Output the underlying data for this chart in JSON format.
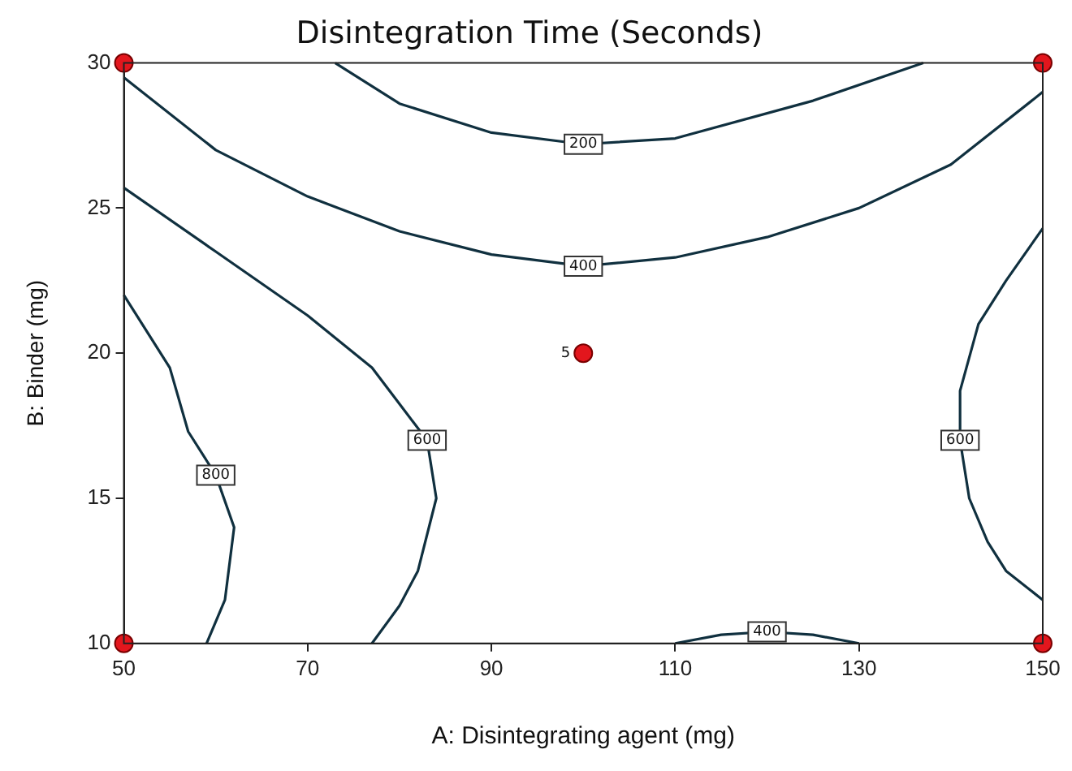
{
  "chart_data": {
    "type": "line",
    "title": "Disintegration Time (Seconds)",
    "xlabel": "A: Disintegrating agent (mg)",
    "ylabel": "B: Binder (mg)",
    "xlim": [
      50,
      150
    ],
    "xticks": [
      50,
      70,
      90,
      110,
      130,
      150
    ],
    "ylim": [
      10,
      30
    ],
    "yticks": [
      10,
      15,
      20,
      25,
      30
    ],
    "grid": false,
    "legend": false,
    "marker": "none",
    "line_style": "solid",
    "series": [
      {
        "name": "200",
        "color": "#10303f",
        "x": [
          73,
          80,
          90,
          100,
          110,
          125,
          137
        ],
        "values": [
          30,
          28.6,
          27.6,
          27.2,
          27.4,
          28.7,
          30
        ]
      },
      {
        "name": "400",
        "color": "#10303f",
        "x": [
          50,
          60,
          70,
          80,
          90,
          100,
          110,
          120,
          130,
          140,
          150
        ],
        "values": [
          29.5,
          27,
          25.4,
          24.2,
          23.4,
          23,
          23.3,
          24,
          25,
          26.5,
          29
        ]
      },
      {
        "name": "600",
        "color": "#10303f",
        "x": [
          50,
          60,
          70,
          77,
          83,
          84,
          82,
          80,
          77
        ],
        "values": [
          25.7,
          23.5,
          21.3,
          19.5,
          17,
          15,
          12.5,
          11.3,
          10
        ]
      },
      {
        "name": "800",
        "color": "#10303f",
        "x": [
          50,
          55,
          57,
          60,
          62,
          61,
          59
        ],
        "values": [
          22,
          19.5,
          17.3,
          15.8,
          14,
          11.5,
          10
        ]
      },
      {
        "name": "600",
        "color": "#10303f",
        "x": [
          150,
          146,
          143,
          141,
          141,
          142,
          144,
          146,
          150
        ],
        "values": [
          24.3,
          22.5,
          21,
          18.7,
          17,
          15,
          13.5,
          12.5,
          11.5
        ]
      },
      {
        "name": "400",
        "color": "#10303f",
        "x": [
          110,
          115,
          120,
          125,
          130
        ],
        "values": [
          10,
          10.3,
          10.4,
          10.3,
          10
        ]
      },
      {
        "type": "scatter",
        "marker": "circle",
        "color": "#e3161d",
        "x": [
          50,
          50,
          150,
          150,
          100
        ],
        "values": [
          10,
          30,
          10,
          30,
          20
        ]
      }
    ],
    "annotations": [
      {
        "text": "5",
        "x": 100,
        "y": 20
      }
    ]
  }
}
